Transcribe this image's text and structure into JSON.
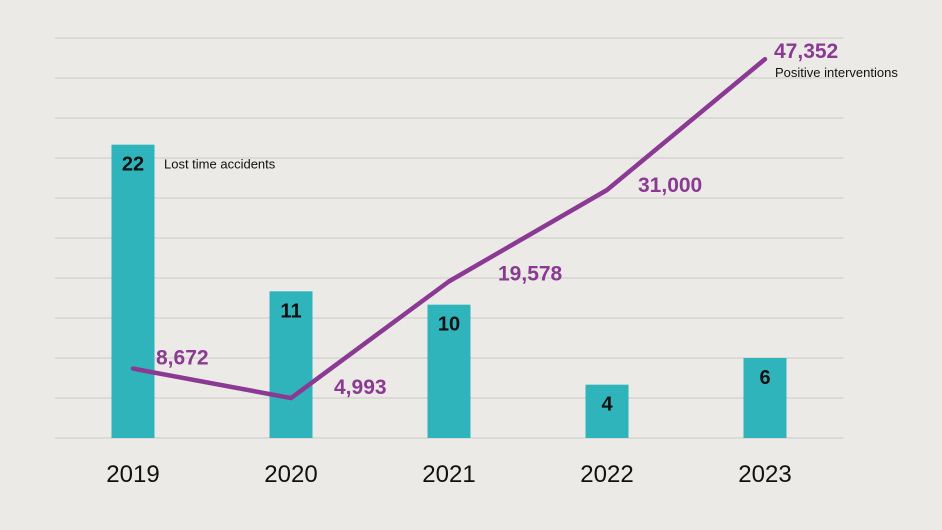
{
  "chart_data": {
    "type": "bar",
    "title": "",
    "categories": [
      "2019",
      "2020",
      "2021",
      "2022",
      "2023"
    ],
    "series": [
      {
        "name": "Lost time accidents",
        "type": "bar",
        "values": [
          22,
          11,
          10,
          4,
          6
        ],
        "labels": [
          "22",
          "11",
          "10",
          "4",
          "6"
        ],
        "color": "#2fb4bb",
        "ylim": [
          0,
          30
        ]
      },
      {
        "name": "Positive interventions",
        "type": "line",
        "values": [
          8672,
          4993,
          19578,
          31000,
          47352
        ],
        "labels": [
          "8,672",
          "4,993",
          "19,578",
          "31,000",
          "47,352"
        ],
        "color": "#8b3a93",
        "ylim": [
          0,
          50000
        ]
      }
    ],
    "xlabel": "",
    "ylabel": "",
    "grid": true
  }
}
